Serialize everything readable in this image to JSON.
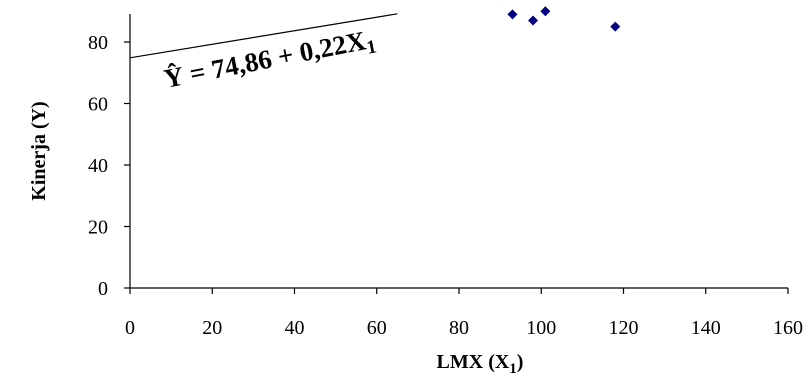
{
  "chart_data": {
    "type": "scatter",
    "xlabel": "LMX (X",
    "xlabel_sub": "1",
    "xlabel_tail": ")",
    "ylabel": "Kinerja (Y)",
    "xlim": [
      0,
      160
    ],
    "ylim": [
      0,
      90
    ],
    "x_ticks": [
      0,
      20,
      40,
      60,
      80,
      100,
      120,
      140,
      160
    ],
    "y_ticks": [
      0,
      20,
      40,
      60,
      80
    ],
    "grid": false,
    "marker_color": "#000080",
    "points": [
      {
        "x": 93,
        "y": 89
      },
      {
        "x": 98,
        "y": 87
      },
      {
        "x": 101,
        "y": 90
      },
      {
        "x": 118,
        "y": 85
      }
    ],
    "regression": {
      "intercept": 74.86,
      "slope": 0.22,
      "x_range": [
        0,
        65
      ],
      "equation": "Ŷ = 74,86 + 0,22X",
      "equation_sub": "1"
    }
  }
}
